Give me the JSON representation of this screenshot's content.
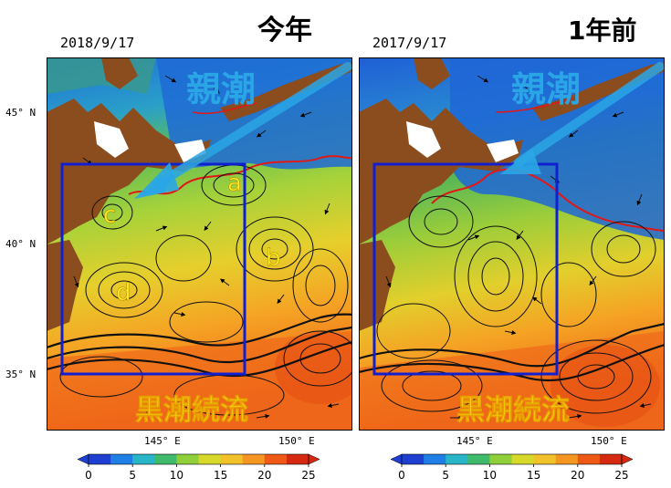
{
  "panels": [
    {
      "heading": "今年",
      "date": "2018/9/17",
      "oyashio_label": "親潮",
      "kuroshio_label": "黒潮続流",
      "region_box": true,
      "eddy_labels": [
        "a",
        "b",
        "c",
        "d"
      ]
    },
    {
      "heading": "1年前",
      "date": "2017/9/17",
      "oyashio_label": "親潮",
      "kuroshio_label": "黒潮続流",
      "region_box": true,
      "eddy_labels": []
    }
  ],
  "axes": {
    "lat_ticks": [
      "45° N",
      "40° N",
      "35° N"
    ],
    "lon_ticks": [
      "145° E",
      "150° E"
    ]
  },
  "colorbar": {
    "ticks": [
      "0",
      "5",
      "10",
      "15",
      "20",
      "25"
    ],
    "min": 0,
    "max": 25,
    "colors": [
      "#1f3fd0",
      "#1f7fe6",
      "#28b6c8",
      "#3fba6a",
      "#8fcf3a",
      "#d6d82a",
      "#f2c22a",
      "#f59622",
      "#ee5a16",
      "#d62a10"
    ]
  },
  "colors": {
    "land": "#8b4c1e",
    "box": "#1020d0",
    "front": "#e01818",
    "oyashio_arrow": "#2aa6e6",
    "kuroshio_text": "#ffee22"
  }
}
